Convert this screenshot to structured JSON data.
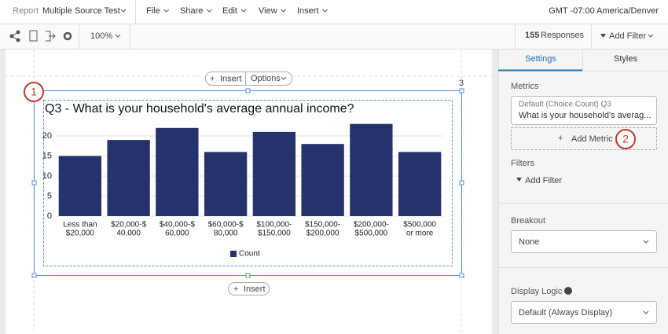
{
  "top_bar": {
    "report_label": "Report",
    "report_name": "Multiple Source Test",
    "menus": [
      "File",
      "Share",
      "Edit",
      "View",
      "Insert"
    ],
    "timezone": "GMT -07:00 America/Denver"
  },
  "toolbar": {
    "zoom": "100%",
    "responses_count": 155,
    "responses_label": "Responses",
    "add_filter": "Add Filter"
  },
  "canvas": {
    "insert_top": "Insert",
    "options": "Options",
    "page_number": 3,
    "insert_bottom": "Insert",
    "callouts": [
      1,
      2
    ]
  },
  "chart_data": {
    "type": "bar",
    "title": "Q3 - What is your household's average annual income?",
    "categories": [
      [
        "Less than",
        "$20,000"
      ],
      [
        "$20,000-$",
        "40,000"
      ],
      [
        "$40,000-$",
        "60,000"
      ],
      [
        "$60,000-$",
        "80,000"
      ],
      [
        "$100,000-",
        "$150,000"
      ],
      [
        "$150,000-",
        "$200,000"
      ],
      [
        "$200,000-",
        "$500,000"
      ],
      [
        "$500,000",
        "or more"
      ]
    ],
    "series": [
      {
        "name": "Count",
        "color": "#24336b",
        "values": [
          15,
          19,
          22,
          16,
          21,
          18,
          23,
          16
        ]
      }
    ],
    "ylim": [
      0,
      25
    ],
    "yticks": [
      0,
      5,
      10,
      15,
      20
    ],
    "grid": true
  },
  "side_panel": {
    "tabs": [
      "Settings",
      "Styles"
    ],
    "metrics_heading": "Metrics",
    "metric_title": "Default (Choice Count) Q3",
    "metric_subtitle": "What is your household's averag...",
    "add_metric": "Add Metric",
    "filters_heading": "Filters",
    "add_filter": "Add Filter",
    "breakout_heading": "Breakout",
    "breakout_value": "None",
    "display_logic_heading": "Display Logic",
    "display_logic_value": "Default (Always Display)"
  }
}
